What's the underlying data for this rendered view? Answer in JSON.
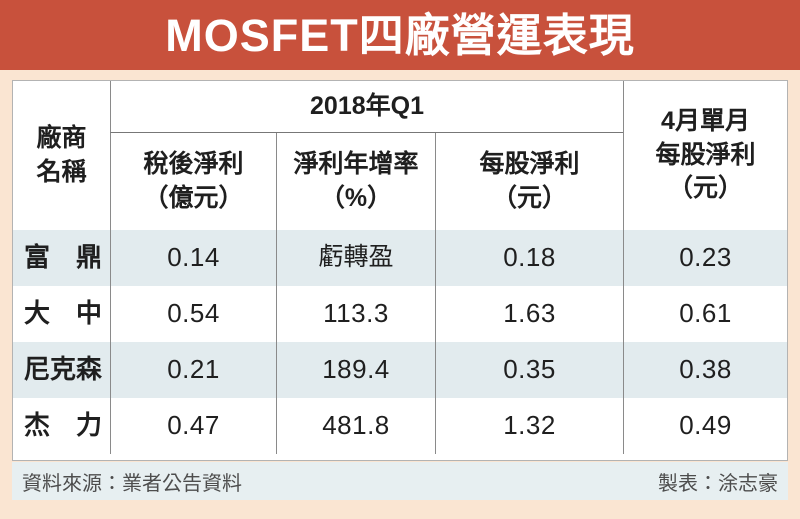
{
  "title": "MOSFET四廠營運表現",
  "table": {
    "corner": {
      "line1": "廠商",
      "line2": "名稱"
    },
    "group_header": "2018年Q1",
    "sub_headers": [
      {
        "line1": "稅後淨利",
        "line2": "（億元）"
      },
      {
        "line1": "淨利年增率",
        "line2": "（%）"
      },
      {
        "line1": "每股淨利",
        "line2": "（元）"
      }
    ],
    "right_header": {
      "line1": "4月單月",
      "line2": "每股淨利",
      "line3": "（元）"
    },
    "rows": [
      {
        "name": "富　鼎",
        "v1": "0.14",
        "v2": "虧轉盈",
        "v3": "0.18",
        "v4": "0.23"
      },
      {
        "name": "大　中",
        "v1": "0.54",
        "v2": "113.3",
        "v3": "1.63",
        "v4": "0.61"
      },
      {
        "name": "尼克森",
        "v1": "0.21",
        "v2": "189.4",
        "v3": "0.35",
        "v4": "0.38"
      },
      {
        "name": "杰　力",
        "v1": "0.47",
        "v2": "481.8",
        "v3": "1.32",
        "v4": "0.49"
      }
    ]
  },
  "footer": {
    "source": "資料來源：業者公告資料",
    "credit": "製表：涂志豪"
  },
  "colors": {
    "banner": "#c8513c",
    "page_bg": "#fae5d2",
    "stripe": "#e2ebee",
    "footer_bg": "#e7eff1",
    "border": "#8a8a8a"
  },
  "chart_data": {
    "type": "table",
    "title": "MOSFET四廠營運表現",
    "column_groups": [
      {
        "label": "2018年Q1",
        "spans": [
          "稅後淨利（億元）",
          "淨利年增率（%）",
          "每股淨利（元）"
        ]
      },
      {
        "label": "4月單月每股淨利（元）",
        "spans": [
          "4月單月每股淨利（元）"
        ]
      }
    ],
    "columns": [
      "廠商名稱",
      "稅後淨利（億元）",
      "淨利年增率（%）",
      "每股淨利（元）",
      "4月單月每股淨利（元）"
    ],
    "rows": [
      [
        "富鼎",
        "0.14",
        "虧轉盈",
        "0.18",
        "0.23"
      ],
      [
        "大中",
        "0.54",
        "113.3",
        "1.63",
        "0.61"
      ],
      [
        "尼克森",
        "0.21",
        "189.4",
        "0.35",
        "0.38"
      ],
      [
        "杰力",
        "0.47",
        "481.8",
        "1.32",
        "0.49"
      ]
    ],
    "source": "資料來源：業者公告資料",
    "credit": "製表：涂志豪"
  }
}
